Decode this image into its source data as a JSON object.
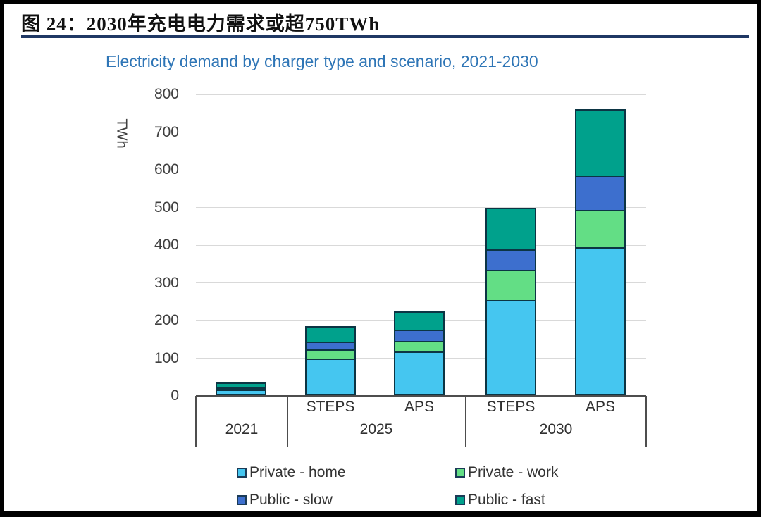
{
  "page": {
    "figure_label": "图 24：2030年充电电力需求或超750TWh"
  },
  "chart_data": {
    "type": "bar",
    "stacked": true,
    "title": "Electricity demand by charger type and scenario, 2021-2030",
    "ylabel": "TWh",
    "ylim": [
      0,
      800
    ],
    "yticks": [
      0,
      100,
      200,
      300,
      400,
      500,
      600,
      700,
      800
    ],
    "grid": true,
    "categories": [
      "2021",
      "2025 STEPS",
      "2025 APS",
      "2030 STEPS",
      "2030 APS"
    ],
    "series": [
      {
        "name": "Private - home",
        "color": "#45C6F0",
        "values": [
          18,
          100,
          118,
          255,
          395
        ]
      },
      {
        "name": "Private - work",
        "color": "#63DE85",
        "values": [
          2,
          25,
          28,
          80,
          100
        ]
      },
      {
        "name": "Public - slow",
        "color": "#3D6FCE",
        "values": [
          3,
          22,
          32,
          55,
          90
        ]
      },
      {
        "name": "Public - fast",
        "color": "#00A18C",
        "values": [
          12,
          38,
          47,
          110,
          175
        ]
      }
    ],
    "totals": [
      35,
      185,
      225,
      500,
      760
    ],
    "x_axis": {
      "scenario_per_bar": [
        "",
        "STEPS",
        "APS",
        "STEPS",
        "APS"
      ],
      "groups": [
        {
          "year": "2021",
          "scenarios": []
        },
        {
          "year": "2025",
          "scenarios": [
            "STEPS",
            "APS"
          ]
        },
        {
          "year": "2030",
          "scenarios": [
            "STEPS",
            "APS"
          ]
        }
      ]
    },
    "legend": {
      "position": "bottom",
      "rows": [
        [
          "Private - home",
          "Private - work"
        ],
        [
          "Public - slow",
          "Public - fast"
        ]
      ]
    }
  }
}
